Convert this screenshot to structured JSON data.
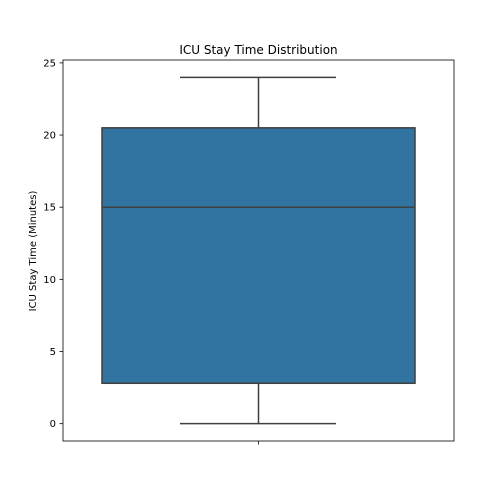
{
  "chart_data": {
    "type": "box",
    "title": "ICU Stay Time Distribution",
    "xlabel": "",
    "ylabel": "ICU Stay Time (Minutes)",
    "ylim": [
      -1.2,
      25.2
    ],
    "yticks": [
      0,
      5,
      10,
      15,
      20,
      25
    ],
    "grid": false,
    "boxes": [
      {
        "whisker_low": 0,
        "q1": 2.8,
        "median": 15,
        "q3": 20.5,
        "whisker_high": 24
      }
    ],
    "box_color": "#3274a1",
    "edge_color": "#3f3f3f"
  }
}
